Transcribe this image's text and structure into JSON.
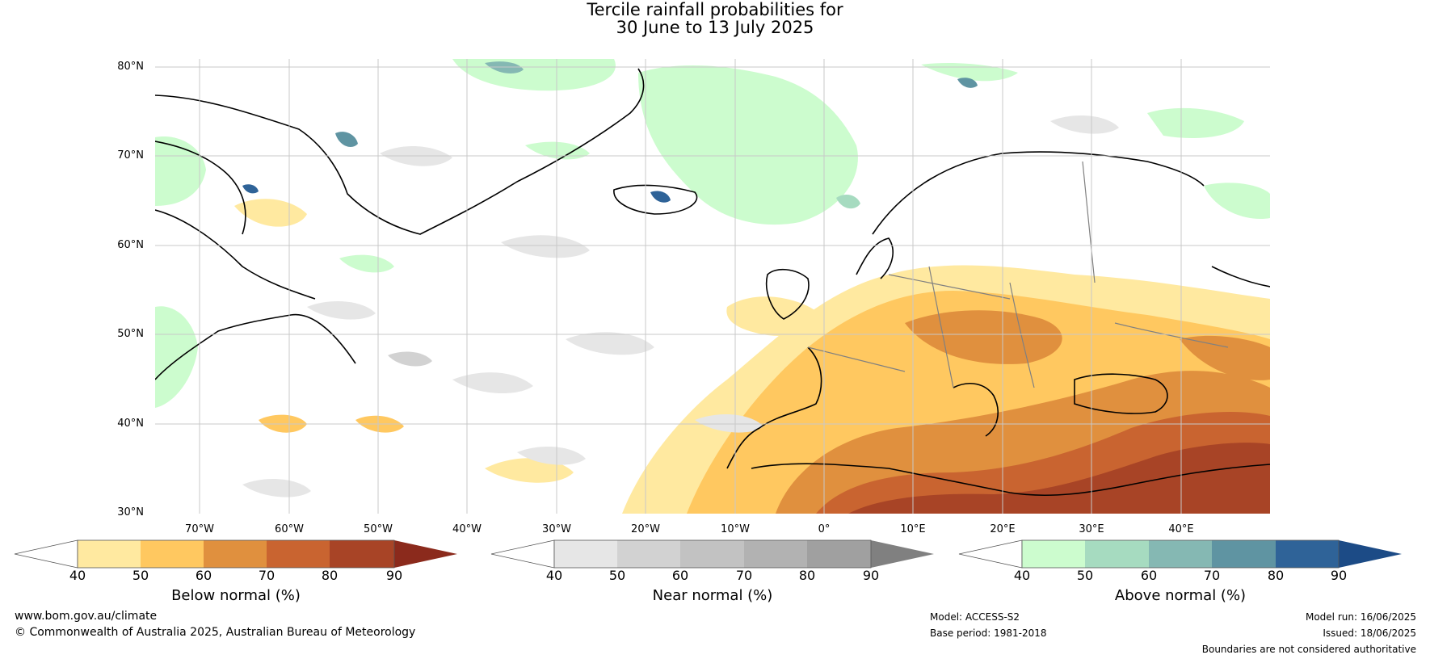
{
  "title": {
    "line1": "Tercile rainfall probabilities for",
    "line2": "30 June to 13 July 2025"
  },
  "map": {
    "lat_labels": [
      "80°N",
      "70°N",
      "60°N",
      "50°N",
      "40°N",
      "30°N"
    ],
    "lon_labels": [
      "70°W",
      "60°W",
      "50°W",
      "40°W",
      "30°W",
      "20°W",
      "10°W",
      "0°",
      "10°E",
      "20°E",
      "30°E",
      "40°E"
    ],
    "colors": {
      "below": [
        "#ffe9a0",
        "#ffc860",
        "#e0903e",
        "#c96430",
        "#a84426",
        "#8b2a1c"
      ],
      "near": [
        "#e6e6e6",
        "#d2d2d2",
        "#c2c2c2",
        "#b2b2b2",
        "#a0a0a0",
        "#808080"
      ],
      "above": [
        "#ccfcce",
        "#a6dbc0",
        "#85b8b3",
        "#5f94a2",
        "#2f6398",
        "#1c4b86"
      ],
      "coast": "#000000",
      "borders": "#808080",
      "grid": "#c8c8c8"
    }
  },
  "colorbars": [
    {
      "title": "Below normal (%)",
      "ticks": [
        "40",
        "50",
        "60",
        "70",
        "80",
        "90"
      ]
    },
    {
      "title": "Near normal (%)",
      "ticks": [
        "40",
        "50",
        "60",
        "70",
        "80",
        "90"
      ]
    },
    {
      "title": "Above normal (%)",
      "ticks": [
        "40",
        "50",
        "60",
        "70",
        "80",
        "90"
      ]
    }
  ],
  "footer": {
    "website": "www.bom.gov.au/climate",
    "copyright": "© Commonwealth of Australia 2025, Australian Bureau of Meteorology",
    "model": "Model: ACCESS-S2",
    "base_period": "Base period: 1981-2018",
    "model_run": "Model run: 16/06/2025",
    "issued": "Issued: 18/06/2025",
    "disclaimer": "Boundaries are not considered authoritative"
  }
}
